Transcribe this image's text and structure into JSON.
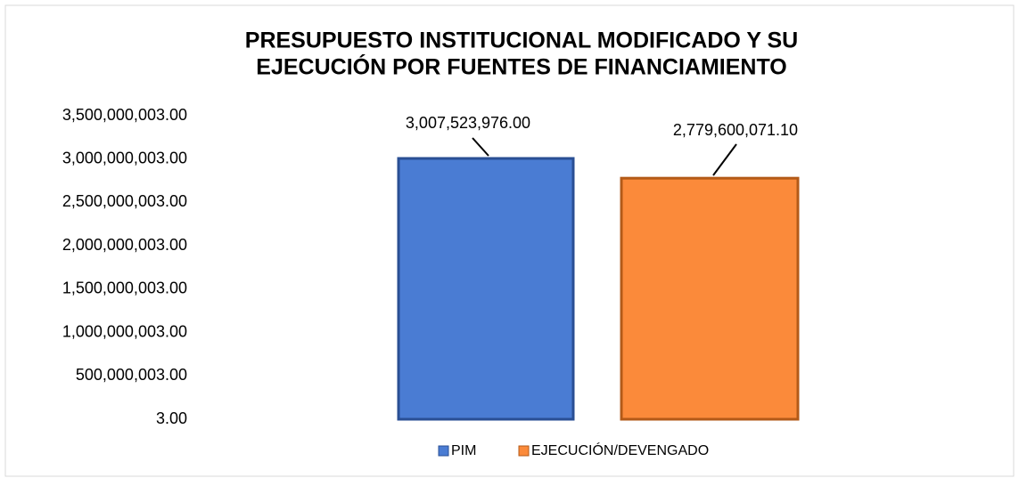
{
  "chart_data": {
    "type": "bar",
    "title": [
      "PRESUPUESTO INSTITUCIONAL MODIFICADO Y SU",
      "EJECUCIÓN POR FUENTES DE FINANCIAMIENTO"
    ],
    "series": [
      {
        "name": "PIM",
        "color": "#4a7cd3",
        "values": [
          3007523976.0
        ],
        "value_labels": [
          "3,007,523,976.00"
        ]
      },
      {
        "name": "EJECUCIÓN/DEVENGADO",
        "color": "#fb8a3a",
        "values": [
          2779600071.1
        ],
        "value_labels": [
          "2,779,600,071.10"
        ]
      }
    ],
    "ylim": [
      3,
      3500000003
    ],
    "yticks": [
      {
        "value": 3,
        "label": "3.00"
      },
      {
        "value": 500000003,
        "label": "500,000,003.00"
      },
      {
        "value": 1000000003,
        "label": "1,000,000,003.00"
      },
      {
        "value": 1500000003,
        "label": "1,500,000,003.00"
      },
      {
        "value": 2000000003,
        "label": "2,000,000,003.00"
      },
      {
        "value": 2500000003,
        "label": "2,500,000,003.00"
      },
      {
        "value": 3000000003,
        "label": "3,000,000,003.00"
      },
      {
        "value": 3500000003,
        "label": "3,500,000,003.00"
      }
    ],
    "grid": false,
    "legend": "bottom"
  }
}
